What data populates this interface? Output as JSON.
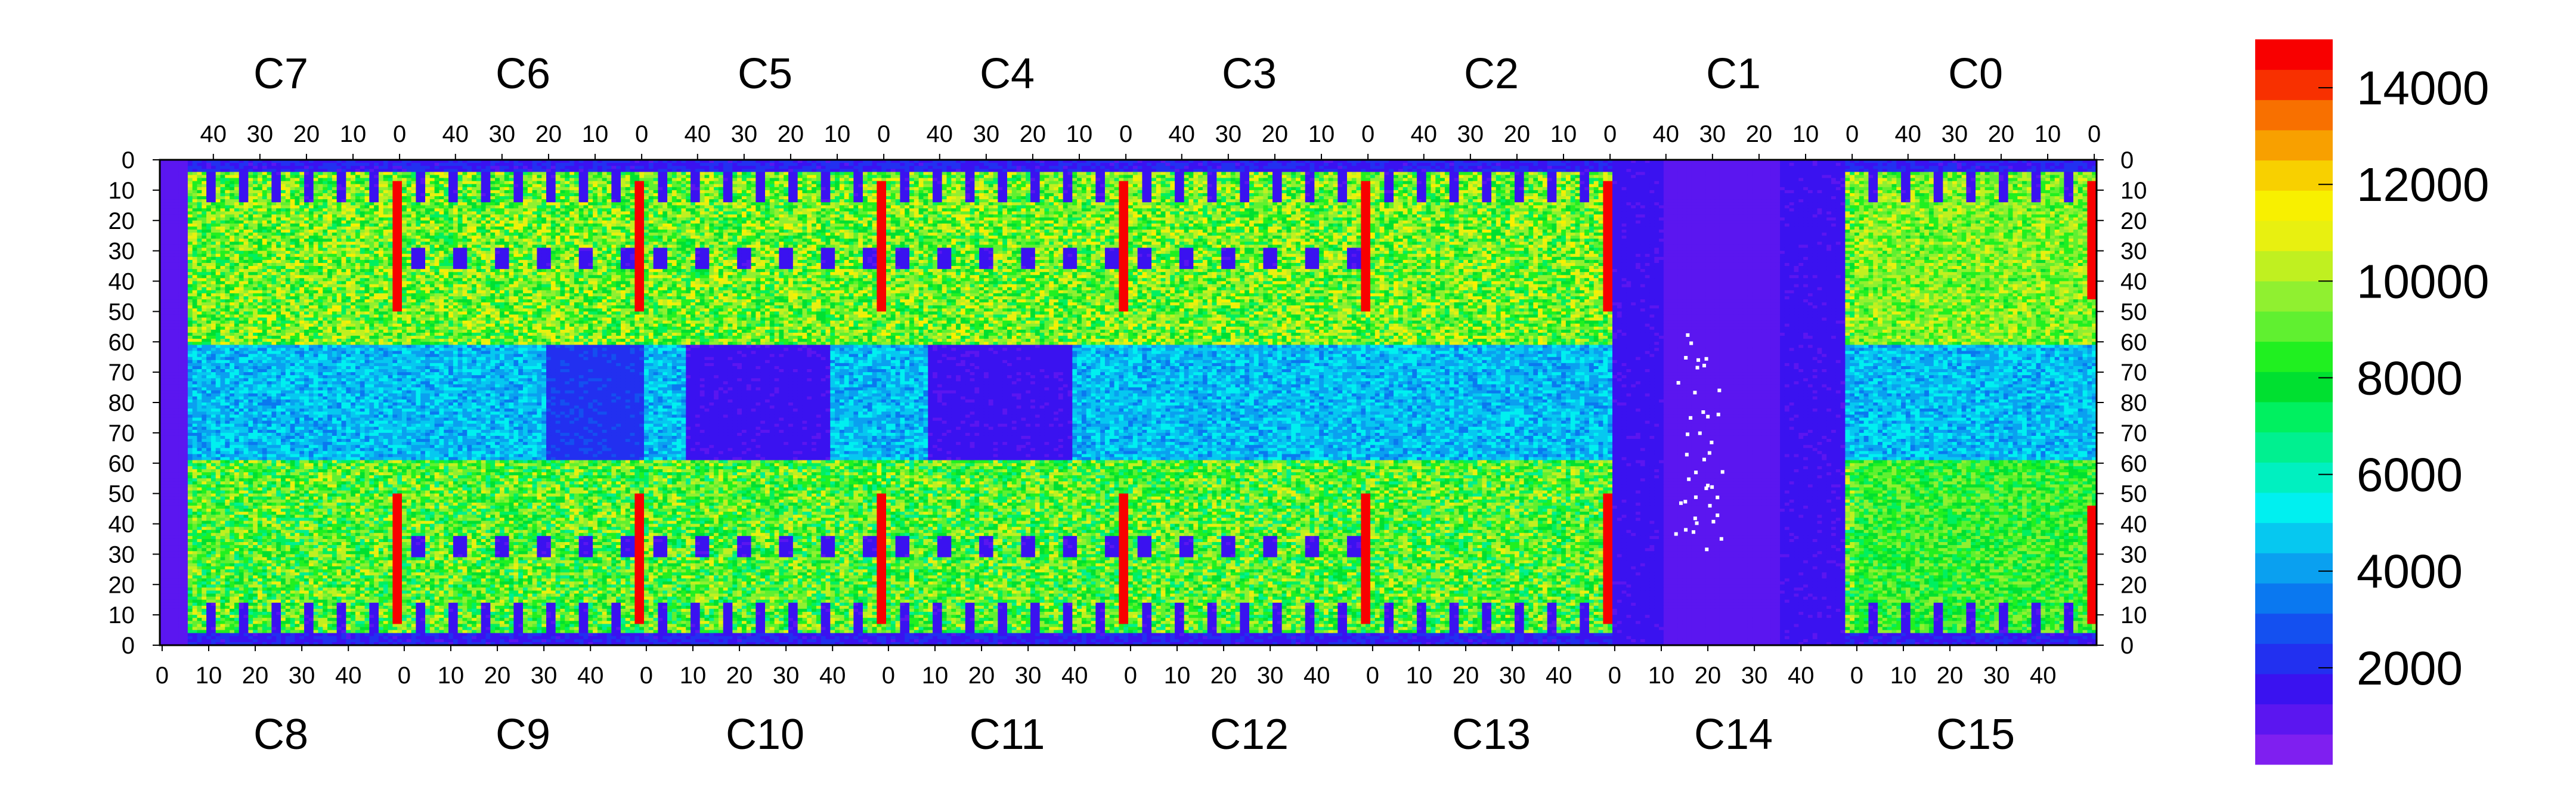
{
  "chart_data": {
    "type": "heatmap",
    "title": "",
    "xlabel": "",
    "ylabel": "",
    "top_chips": [
      "C7",
      "C6",
      "C5",
      "C4",
      "C3",
      "C2",
      "C1",
      "C0"
    ],
    "bottom_chips": [
      "C8",
      "C9",
      "C10",
      "C11",
      "C12",
      "C13",
      "C14",
      "C15"
    ],
    "top_x_ticks": [
      "40",
      "30",
      "20",
      "10",
      "0"
    ],
    "bottom_x_ticks": [
      "0",
      "10",
      "20",
      "30",
      "40"
    ],
    "y_ticks_upper": [
      "0",
      "10",
      "20",
      "30",
      "40",
      "50",
      "60",
      "70",
      "80"
    ],
    "y_ticks_lower": [
      "70",
      "60",
      "50",
      "40",
      "30",
      "20",
      "10",
      "0"
    ],
    "chip_columns": 52,
    "chip_rows": 80,
    "colorbar": {
      "range": [
        0,
        15000
      ],
      "tick_values": [
        2000,
        4000,
        6000,
        8000,
        10000,
        12000,
        14000
      ],
      "tick_labels": [
        "2000",
        "4000",
        "6000",
        "8000",
        "10000",
        "12000",
        "14000"
      ],
      "colors": [
        "#7f1ff0",
        "#5b16f0",
        "#3a12f0",
        "#2230f0",
        "#1450f0",
        "#0a78f0",
        "#0aa0f0",
        "#06c8f0",
        "#00f0f0",
        "#00f0c0",
        "#00f090",
        "#00f060",
        "#00e030",
        "#20f020",
        "#60f030",
        "#90f030",
        "#c0f020",
        "#e8f010",
        "#f8f000",
        "#f8d000",
        "#f8a000",
        "#f87000",
        "#f83000",
        "#f80000"
      ]
    },
    "region_levels": {
      "background_low": 1200,
      "upper_plateau": 9500,
      "lower_plateau": 9000,
      "middle_band": 3500,
      "hot_column": 14500,
      "empty_chip_C14": 800
    }
  }
}
